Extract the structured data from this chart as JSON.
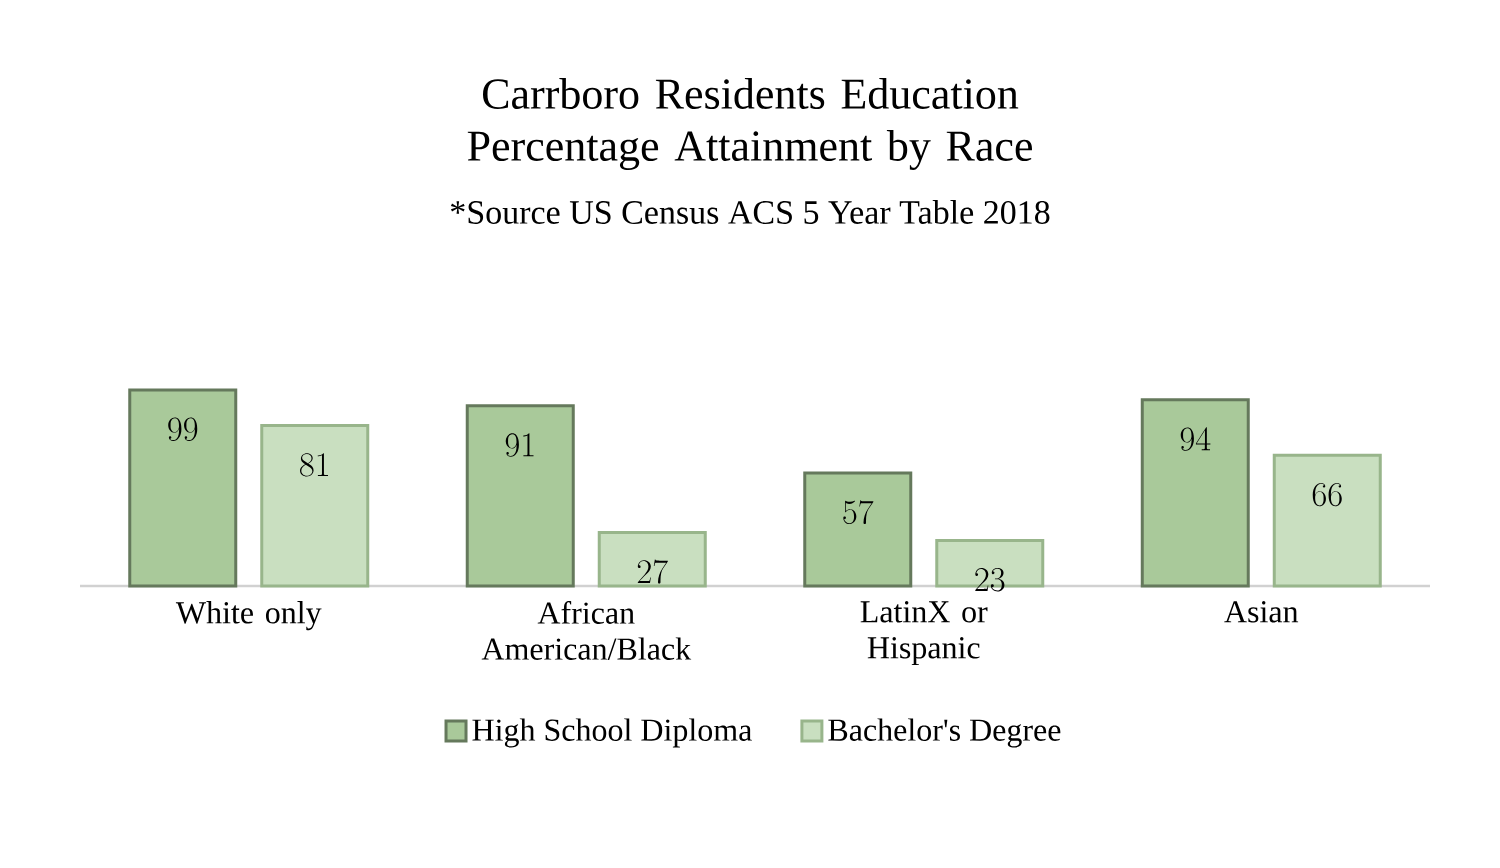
{
  "chart_data": {
    "type": "bar",
    "title": "Carrboro Residents Education Percentage Attainment by Race",
    "subtitle": "*Source US Census ACS 5 Year Table 2018",
    "categories": [
      "White only",
      "African American/Black",
      "LatinX or Hispanic",
      "Asian"
    ],
    "series": [
      {
        "name": "High School Diploma",
        "color": "#a9c99a",
        "values": [
          99,
          91,
          57,
          94
        ]
      },
      {
        "name": "Bachelor's Degree",
        "color": "#c9dfc0",
        "values": [
          81,
          27,
          23,
          66
        ]
      }
    ],
    "data_labels": true,
    "legend": "bottom"
  }
}
